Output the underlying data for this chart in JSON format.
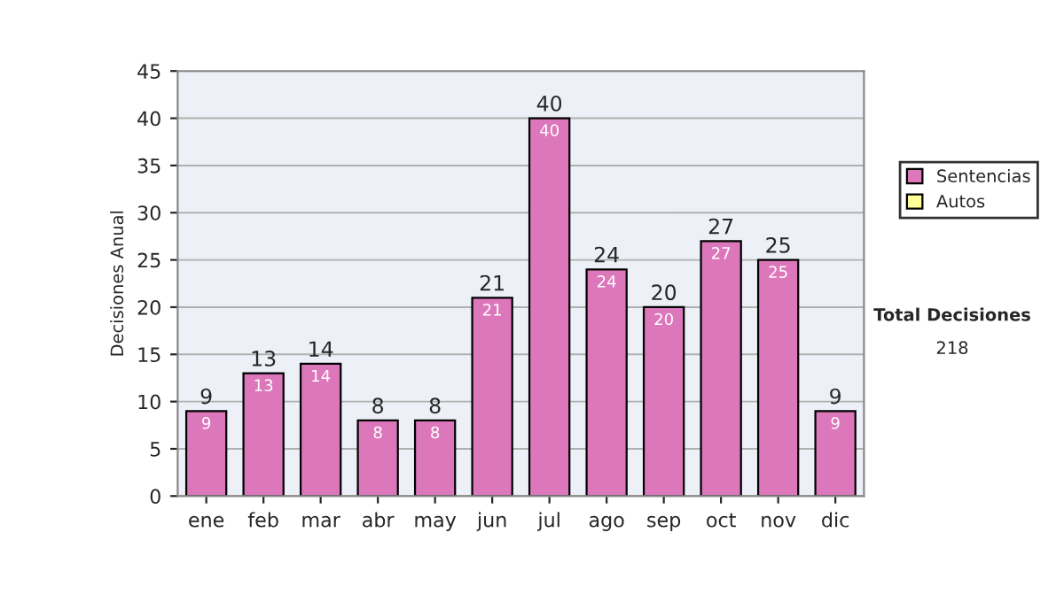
{
  "chart_data": {
    "type": "bar",
    "ylabel": "Decisiones Anual",
    "categories": [
      "ene",
      "feb",
      "mar",
      "abr",
      "may",
      "jun",
      "jul",
      "ago",
      "sep",
      "oct",
      "nov",
      "dic"
    ],
    "series": [
      {
        "name": "Sentencias",
        "color": "#dd77bb",
        "values": [
          9,
          13,
          14,
          8,
          8,
          21,
          40,
          24,
          20,
          27,
          25,
          9
        ],
        "value_labels": [
          "9",
          "13",
          "14",
          "8",
          "8",
          "21",
          "40",
          "24",
          "20",
          "27",
          "25",
          "9"
        ]
      },
      {
        "name": "Autos",
        "color": "#ffff99",
        "values": [
          0,
          0,
          0,
          0,
          0,
          0,
          0,
          0,
          0,
          0,
          0,
          0
        ]
      }
    ],
    "stacked": true,
    "totals": [
      "9",
      "13",
      "14",
      "8",
      "8",
      "21",
      "40",
      "24",
      "20",
      "27",
      "25",
      "9"
    ],
    "ylim": [
      0,
      45
    ],
    "yticks": [
      0,
      5,
      10,
      15,
      20,
      25,
      30,
      35,
      40,
      45
    ],
    "grid": "y",
    "legend": "right",
    "annotations": [
      "Total Decisiones",
      "218"
    ]
  }
}
